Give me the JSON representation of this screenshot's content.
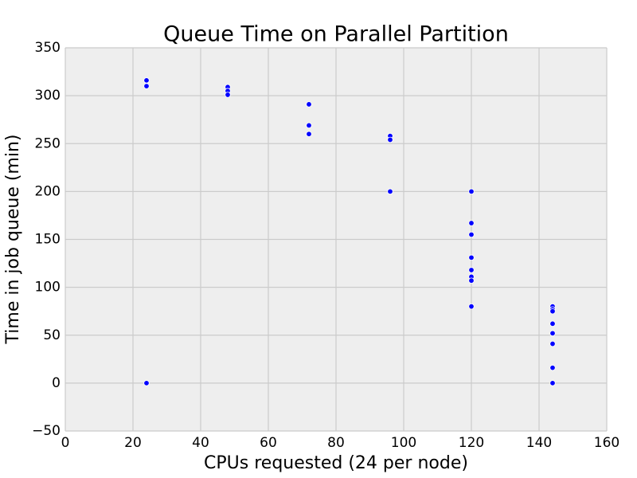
{
  "chart_data": {
    "type": "scatter",
    "title": "Queue Time on Parallel Partition",
    "xlabel": "CPUs requested (24 per node)",
    "ylabel": "Time in job queue (min)",
    "x": [
      24,
      24,
      24,
      48,
      48,
      48,
      72,
      72,
      72,
      96,
      96,
      96,
      120,
      120,
      120,
      120,
      120,
      120,
      120,
      120,
      144,
      144,
      144,
      144,
      144,
      144,
      144,
      144
    ],
    "y": [
      316,
      310,
      0,
      309,
      305,
      301,
      291,
      269,
      260,
      258,
      254,
      200,
      200,
      167,
      155,
      131,
      118,
      111,
      107,
      80,
      80,
      77,
      75,
      62,
      52,
      41,
      16,
      0
    ],
    "color": "#0000ff",
    "xlim": [
      0,
      160
    ],
    "xticks": [
      0,
      20,
      40,
      60,
      80,
      100,
      120,
      140,
      160
    ],
    "ylim": [
      -50,
      350
    ],
    "yticks": [
      {
        "value": -50,
        "label": "−50"
      },
      0,
      50,
      100,
      150,
      200,
      250,
      300,
      350
    ],
    "grid": true
  }
}
